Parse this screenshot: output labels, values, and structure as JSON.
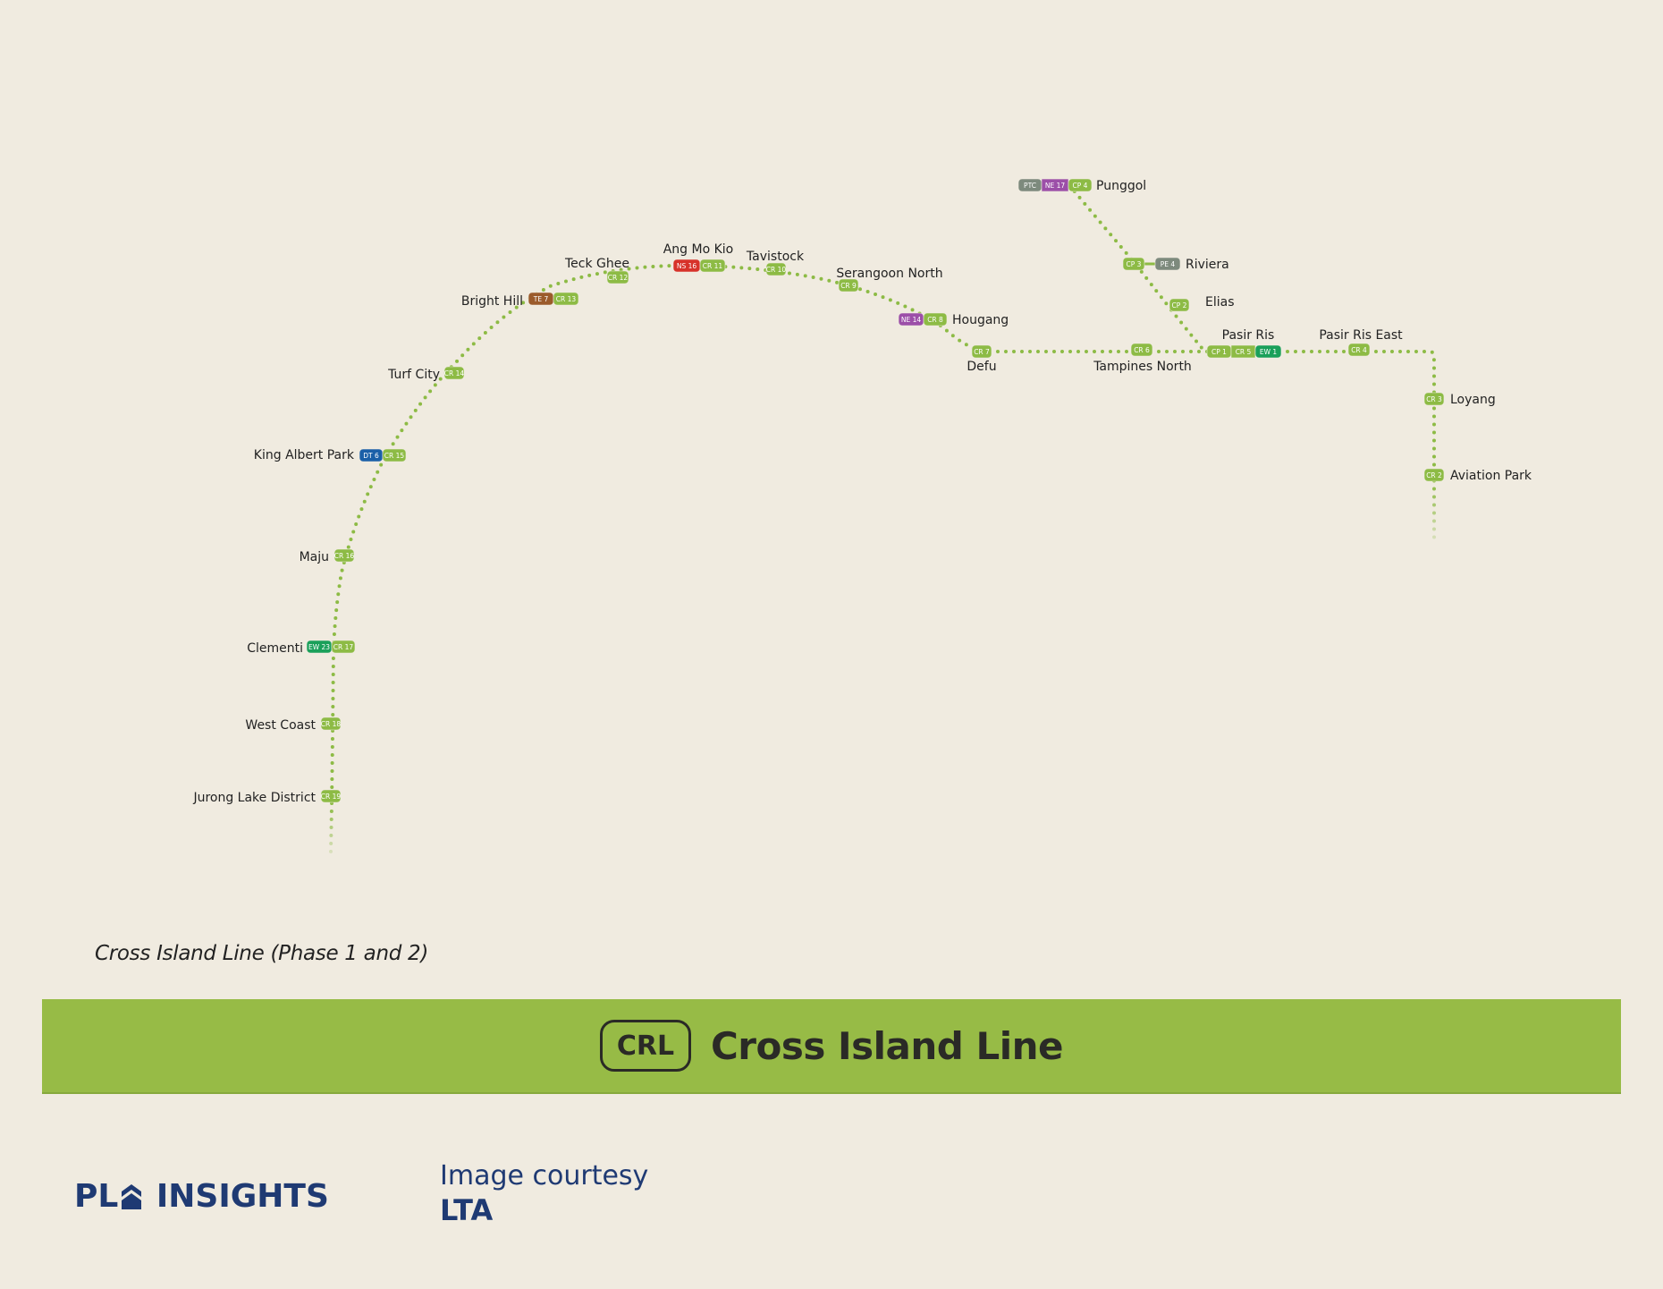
{
  "map": {
    "stations": [
      {
        "name": "Punggol",
        "codes": [
          "PTC",
          "NE 17",
          "CP 4"
        ]
      },
      {
        "name": "Riviera",
        "codes": [
          "CP 3",
          "PE 4"
        ]
      },
      {
        "name": "Elias",
        "codes": [
          "CP 2"
        ]
      },
      {
        "name": "Pasir Ris",
        "codes": [
          "CP 1",
          "CR 5",
          "EW 1"
        ]
      },
      {
        "name": "Pasir Ris East",
        "codes": [
          "CR 4"
        ]
      },
      {
        "name": "Loyang",
        "codes": [
          "CR 3"
        ]
      },
      {
        "name": "Aviation Park",
        "codes": [
          "CR 2"
        ]
      },
      {
        "name": "Tampines North",
        "codes": [
          "CR 6"
        ]
      },
      {
        "name": "Defu",
        "codes": [
          "CR 7"
        ]
      },
      {
        "name": "Hougang",
        "codes": [
          "NE 14",
          "CR 8"
        ]
      },
      {
        "name": "Serangoon North",
        "codes": [
          "CR 9"
        ]
      },
      {
        "name": "Tavistock",
        "codes": [
          "CR 10"
        ]
      },
      {
        "name": "Ang Mo Kio",
        "codes": [
          "NS 16",
          "CR 11"
        ]
      },
      {
        "name": "Teck Ghee",
        "codes": [
          "CR 12"
        ]
      },
      {
        "name": "Bright Hill",
        "codes": [
          "TE 7",
          "CR 13"
        ]
      },
      {
        "name": "Turf City",
        "codes": [
          "CR 14"
        ]
      },
      {
        "name": "King Albert Park",
        "codes": [
          "DT 6",
          "CR 15"
        ]
      },
      {
        "name": "Maju",
        "codes": [
          "CR 16"
        ]
      },
      {
        "name": "Clementi",
        "codes": [
          "EW 23",
          "CR 17"
        ]
      },
      {
        "name": "West Coast",
        "codes": [
          "CR 18"
        ]
      },
      {
        "name": "Jurong Lake District",
        "codes": [
          "CR 19"
        ]
      }
    ],
    "colors": {
      "crl": "#8dbb45",
      "ne": "#9c4fa8",
      "ptc": "#7d8a7d",
      "ew": "#1aa05a",
      "ns": "#d7322a",
      "te": "#9b5b2b",
      "dt": "#1a5fa8"
    }
  },
  "caption": "Cross Island Line (Phase 1 and 2)",
  "banner": {
    "badge": "CRL",
    "title": "Cross Island Line"
  },
  "footer": {
    "logo_text": "PL INSIGHTS",
    "courtesy_line1": "Image courtesy",
    "courtesy_line2": "LTA"
  }
}
